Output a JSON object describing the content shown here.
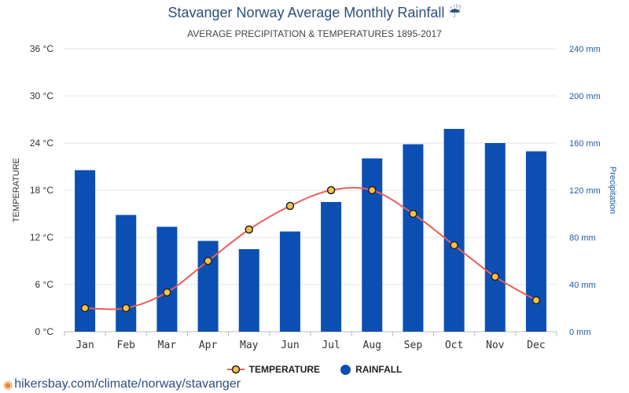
{
  "title": "Stavanger Norway Average Monthly Rainfall ☔",
  "subtitle": "AVERAGE PRECIPITATION & TEMPERATURES 1895-2017",
  "footer_link": "hikersbay.com/climate/norway/stavanger",
  "colors": {
    "rainfall": "#0b4fb3",
    "temperature_line": "#e8605a",
    "marker_fill": "#f6c04d",
    "title": "#2b4f7e"
  },
  "chart_data": {
    "type": "bar",
    "categories": [
      "Jan",
      "Feb",
      "Mar",
      "Apr",
      "May",
      "Jun",
      "Jul",
      "Aug",
      "Sep",
      "Oct",
      "Nov",
      "Dec"
    ],
    "series": [
      {
        "name": "RAINFALL",
        "type": "bar",
        "axis": "right",
        "values": [
          137,
          99,
          89,
          77,
          70,
          85,
          110,
          147,
          159,
          172,
          160,
          153
        ]
      },
      {
        "name": "TEMPERATURE",
        "type": "line",
        "axis": "left",
        "values": [
          3,
          3,
          5,
          9,
          13,
          16,
          18,
          18,
          15,
          11,
          7,
          4
        ]
      }
    ],
    "ylabel": "TEMPERATURE",
    "y2label": "Precipitation",
    "ylim": [
      0,
      36
    ],
    "y2lim": [
      0,
      240
    ],
    "yticks": [
      "0 °C",
      "6 °C",
      "12 °C",
      "18 °C",
      "24 °C",
      "30 °C",
      "36 °C"
    ],
    "y2ticks": [
      "0 mm",
      "40 mm",
      "80 mm",
      "120 mm",
      "160 mm",
      "200 mm",
      "240 mm"
    ],
    "grid": true,
    "legend_position": "bottom-center"
  },
  "legend": {
    "temperature_label": "TEMPERATURE",
    "rainfall_label": "RAINFALL"
  }
}
